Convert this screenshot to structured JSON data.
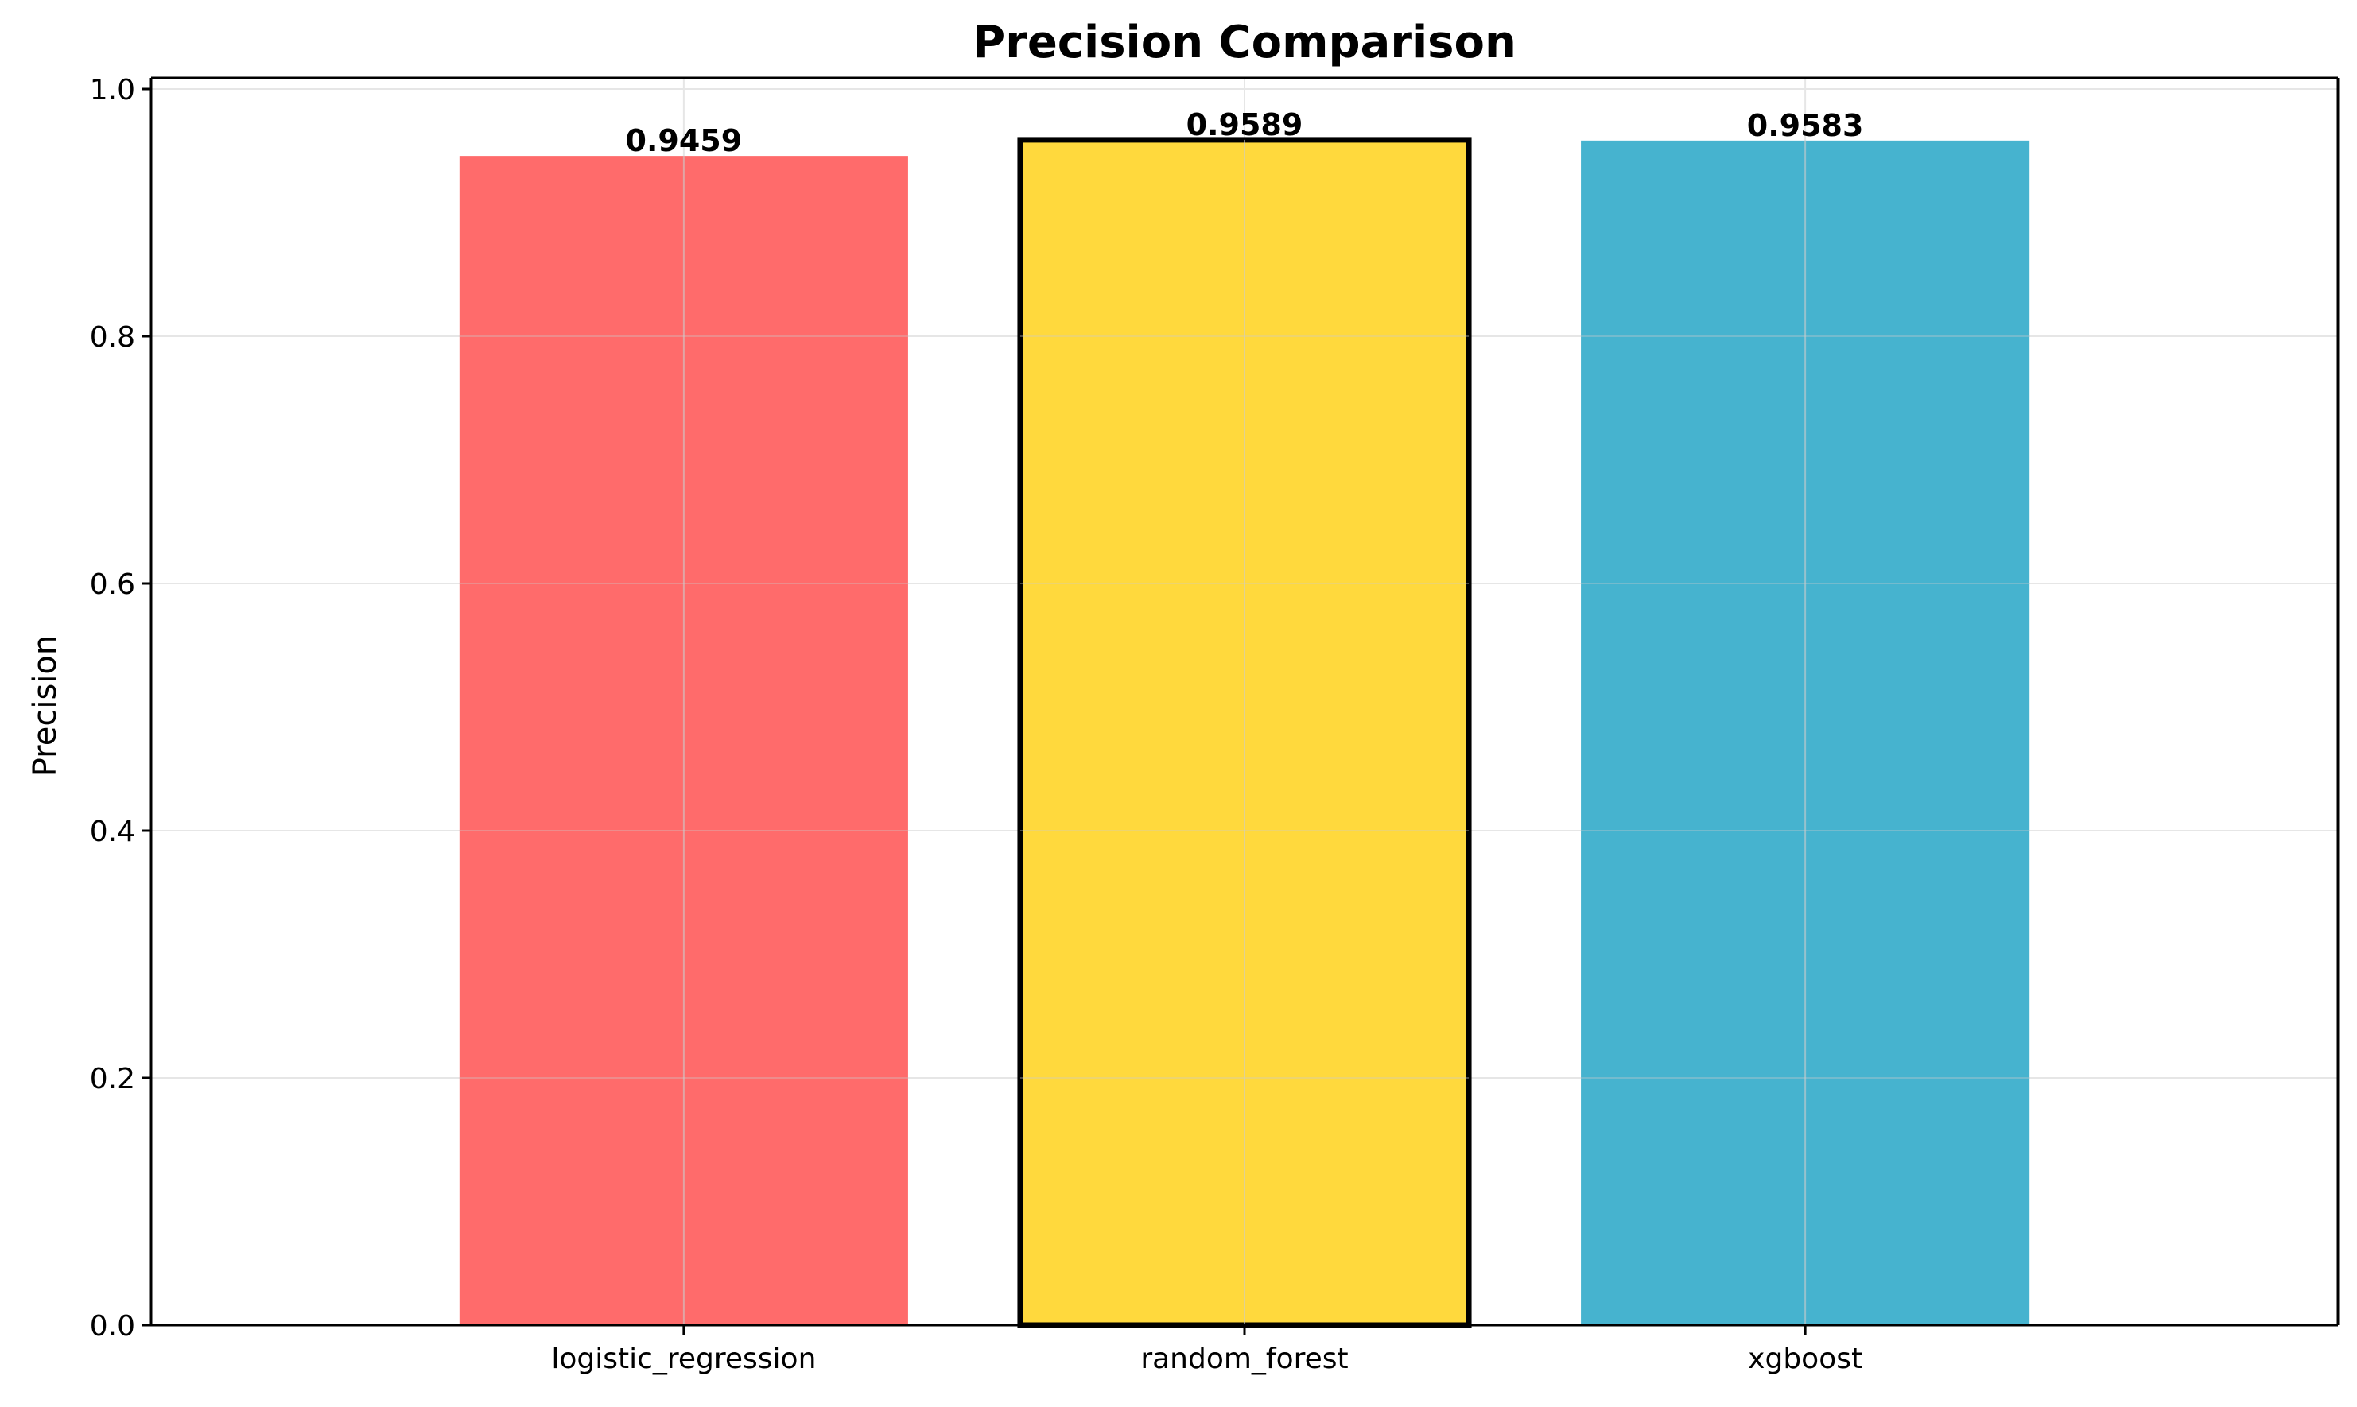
{
  "chart_data": {
    "type": "bar",
    "title": "Precision Comparison",
    "xlabel": "",
    "ylabel": "Precision",
    "categories": [
      "logistic_regression",
      "random_forest",
      "xgboost"
    ],
    "values": [
      0.9459,
      0.9589,
      0.9583
    ],
    "data_labels": [
      "0.9459",
      "0.9589",
      "0.9583"
    ],
    "colors": [
      "#ff6b6b",
      "#ffd93d",
      "#46b3cf"
    ],
    "highlighted": "random_forest",
    "highlight_edge_color": "#000000",
    "ylim": [
      0,
      1.0
    ],
    "yticks": [
      0.0,
      0.2,
      0.4,
      0.6,
      0.8,
      1.0
    ],
    "ytick_labels": [
      "0.0",
      "0.2",
      "0.4",
      "0.6",
      "0.8",
      "1.0"
    ],
    "grid": true,
    "grid_color": "#e6e6e6"
  }
}
